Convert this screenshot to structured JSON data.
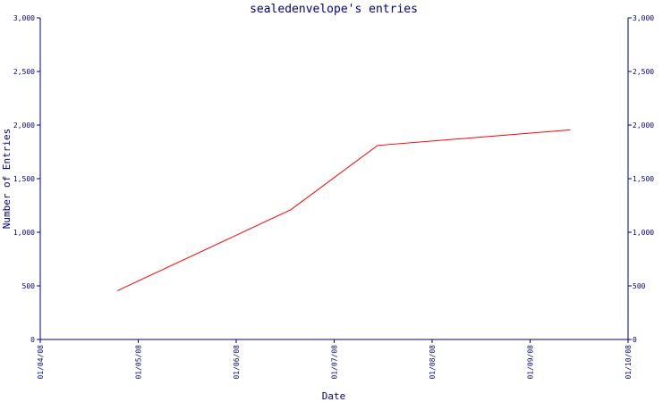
{
  "chart_data": {
    "type": "line",
    "title": "sealedenvelope's entries",
    "xlabel": "Date",
    "ylabel": "Number of Entries",
    "x_ticks": [
      "01/04/08",
      "01/05/08",
      "01/06/08",
      "01/07/08",
      "01/08/08",
      "01/09/08",
      "01/10/08"
    ],
    "y_ticks": [
      "0",
      "500",
      "1,000",
      "1,500",
      "2,000",
      "2,500",
      "3,000"
    ],
    "ylim": [
      0,
      3000
    ],
    "xlim": [
      "2008-04-01",
      "2008-10-01"
    ],
    "grid": false,
    "series": [
      {
        "color": "#ff0000",
        "points": [
          {
            "x": "2008-04-25",
            "y": 455
          },
          {
            "x": "2008-06-18",
            "y": 1210
          },
          {
            "x": "2008-07-15",
            "y": 1810
          },
          {
            "x": "2008-09-13",
            "y": 1955
          }
        ]
      }
    ],
    "colors": {
      "axis": "#000080",
      "line": "#ff0000",
      "background": "#ffffff"
    }
  }
}
